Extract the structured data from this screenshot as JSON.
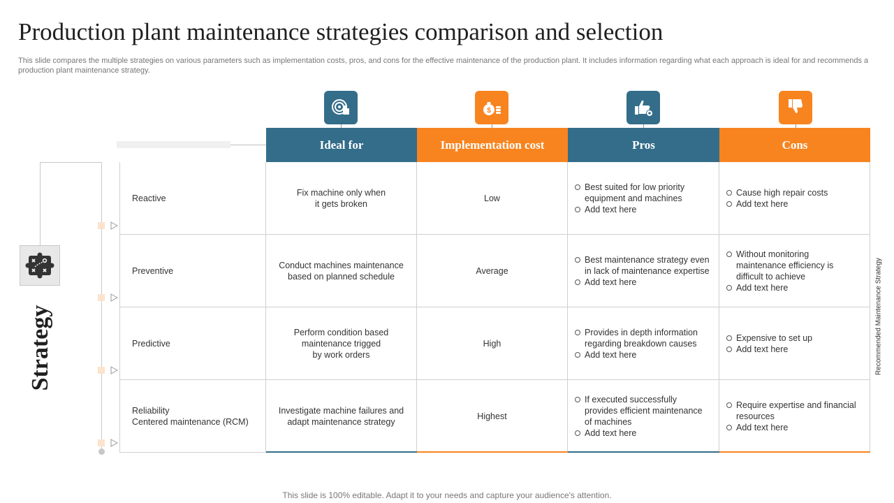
{
  "title": "Production plant maintenance strategies comparison and selection",
  "subtitle": "This slide compares the multiple strategies on various parameters such as implementation costs, pros, and cons for the effective  maintenance of the production plant. It includes information regarding what each approach is ideal for and recommends a production plant maintenance strategy.",
  "footer": "This slide is 100% editable. Adapt it to your needs and capture your audience's attention.",
  "side_label": "Recommended Maintenance Strategy",
  "strategy_label": "Strategy",
  "colors": {
    "blue": "#336d8a",
    "orange": "#f8841f"
  },
  "columns": [
    {
      "label": "Ideal for",
      "color": "blue",
      "icon": "target-thumbs-up-icon"
    },
    {
      "label": "Implementation cost",
      "color": "orange",
      "icon": "money-bag-coins-icon"
    },
    {
      "label": "Pros",
      "color": "blue",
      "icon": "thumbs-up-icon"
    },
    {
      "label": "Cons",
      "color": "orange",
      "icon": "thumbs-down-icon"
    }
  ],
  "rows": [
    {
      "strategy": "Reactive",
      "ideal_for": "Fix machine only when\nit gets broken",
      "cost": "Low",
      "pros": [
        "Best suited for low priority equipment and machines",
        "Add text here"
      ],
      "cons": [
        "Cause high repair costs",
        "Add text here"
      ]
    },
    {
      "strategy": "Preventive",
      "ideal_for": "Conduct machines maintenance\nbased on planned schedule",
      "cost": "Average",
      "pros": [
        "Best maintenance strategy even in lack of maintenance expertise",
        "Add text here"
      ],
      "cons": [
        "Without monitoring maintenance efficiency is difficult to achieve",
        "Add text here"
      ]
    },
    {
      "strategy": "Predictive",
      "ideal_for": "Perform condition based\nmaintenance trigged\nby work orders",
      "cost": "High",
      "pros": [
        "Provides in depth information regarding breakdown causes",
        "Add text here"
      ],
      "cons": [
        "Expensive to set up",
        "Add text here"
      ]
    },
    {
      "strategy": "Reliability\nCentered maintenance (RCM)",
      "ideal_for": "Investigate machine failures and\nadapt maintenance strategy",
      "cost": "Highest",
      "pros": [
        "If executed successfully provides efficient maintenance of machines",
        "Add text here"
      ],
      "cons": [
        "Require expertise and financial resources",
        "Add text here"
      ]
    }
  ]
}
